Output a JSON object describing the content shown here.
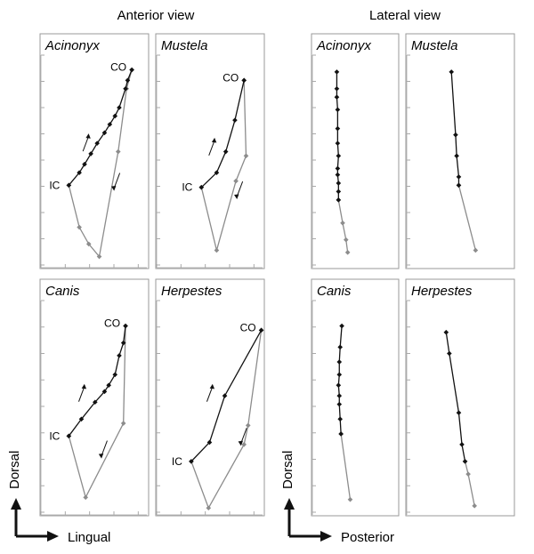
{
  "headings": {
    "anterior": "Anterior view",
    "lateral": "Lateral view"
  },
  "axes": {
    "anterior": {
      "vertical": "Dorsal",
      "horizontal": "Lingual"
    },
    "lateral": {
      "vertical": "Dorsal",
      "horizontal": "Posterior"
    }
  },
  "colors": {
    "closing": "#111111",
    "opening": "#8c8c8c",
    "frame": "#9a9a9a"
  },
  "chart_data": [
    {
      "type": "scatter",
      "title": "Acinonyx",
      "view": "Anterior view",
      "start_label": "IC",
      "end_label": "CO",
      "arrows": [
        "up",
        "down"
      ],
      "xlim": [
        0,
        100
      ],
      "ylim": [
        0,
        100
      ],
      "series": [
        {
          "role": "closing",
          "x": [
            24,
            34,
            39,
            45,
            51,
            58,
            63,
            68,
            72,
            78,
            80,
            84
          ],
          "y": [
            38,
            44,
            48,
            53,
            58,
            63,
            67,
            71,
            75,
            84,
            88,
            93
          ]
        },
        {
          "role": "opening",
          "x": [
            24,
            34,
            43,
            53,
            71,
            79,
            84
          ],
          "y": [
            38,
            18,
            10,
            4,
            54,
            84,
            93
          ]
        }
      ]
    },
    {
      "type": "scatter",
      "title": "Mustela",
      "view": "Anterior view",
      "start_label": "IC",
      "end_label": "CO",
      "arrows": [
        "up",
        "down"
      ],
      "xlim": [
        0,
        100
      ],
      "ylim": [
        0,
        100
      ],
      "series": [
        {
          "role": "closing",
          "x": [
            38,
            53,
            62,
            71,
            80
          ],
          "y": [
            37,
            44,
            54,
            69,
            88
          ]
        },
        {
          "role": "opening",
          "x": [
            38,
            53,
            72,
            82,
            80
          ],
          "y": [
            37,
            7,
            40,
            52,
            88
          ]
        }
      ]
    },
    {
      "type": "scatter",
      "title": "Acinonyx",
      "view": "Lateral view",
      "xlim": [
        0,
        100
      ],
      "ylim": [
        0,
        100
      ],
      "series": [
        {
          "role": "closing",
          "x": [
            26,
            26,
            26,
            27,
            27,
            27,
            28,
            27,
            27,
            28,
            28,
            28
          ],
          "y": [
            92,
            84,
            80,
            74,
            65,
            58,
            52,
            46,
            43,
            39,
            35,
            31
          ]
        },
        {
          "role": "opening",
          "x": [
            28,
            33,
            37,
            39
          ],
          "y": [
            31,
            20,
            12,
            6
          ]
        }
      ]
    },
    {
      "type": "scatter",
      "title": "Mustela",
      "view": "Lateral view",
      "xlim": [
        0,
        100
      ],
      "ylim": [
        0,
        100
      ],
      "series": [
        {
          "role": "closing",
          "x": [
            40,
            44,
            45,
            47,
            47
          ],
          "y": [
            92,
            62,
            52,
            42,
            38
          ]
        },
        {
          "role": "opening",
          "x": [
            47,
            63
          ],
          "y": [
            38,
            7
          ]
        }
      ]
    },
    {
      "type": "scatter",
      "title": "Canis",
      "view": "Anterior view",
      "start_label": "IC",
      "end_label": "CO",
      "arrows": [
        "up",
        "down"
      ],
      "xlim": [
        0,
        100
      ],
      "ylim": [
        0,
        100
      ],
      "series": [
        {
          "role": "closing",
          "x": [
            24,
            36,
            49,
            58,
            62,
            68,
            72,
            76,
            78
          ],
          "y": [
            36,
            44,
            52,
            57,
            60,
            65,
            74,
            80,
            88
          ]
        },
        {
          "role": "opening",
          "x": [
            24,
            40,
            76,
            78
          ],
          "y": [
            36,
            7,
            42,
            88
          ]
        }
      ]
    },
    {
      "type": "scatter",
      "title": "Herpestes",
      "view": "Anterior view",
      "start_label": "IC",
      "end_label": "CO",
      "arrows": [
        "up",
        "down"
      ],
      "xlim": [
        0,
        100
      ],
      "ylim": [
        0,
        100
      ],
      "series": [
        {
          "role": "closing",
          "x": [
            28,
            46,
            61,
            97
          ],
          "y": [
            24,
            33,
            55,
            86
          ]
        },
        {
          "role": "opening",
          "x": [
            28,
            45,
            80,
            84,
            97
          ],
          "y": [
            24,
            2,
            32,
            41,
            86
          ]
        }
      ]
    },
    {
      "type": "scatter",
      "title": "Canis",
      "view": "Lateral view",
      "xlim": [
        0,
        100
      ],
      "ylim": [
        0,
        100
      ],
      "series": [
        {
          "role": "closing",
          "x": [
            32,
            30,
            29,
            29,
            28,
            29,
            29,
            30,
            31
          ],
          "y": [
            88,
            78,
            71,
            65,
            60,
            55,
            51,
            44,
            37
          ]
        },
        {
          "role": "opening",
          "x": [
            31,
            42
          ],
          "y": [
            37,
            6
          ]
        }
      ]
    },
    {
      "type": "scatter",
      "title": "Herpestes",
      "view": "Lateral view",
      "xlim": [
        0,
        100
      ],
      "ylim": [
        0,
        100
      ],
      "series": [
        {
          "role": "closing",
          "x": [
            35,
            38,
            47,
            50,
            53
          ],
          "y": [
            85,
            75,
            47,
            32,
            24
          ]
        },
        {
          "role": "opening",
          "x": [
            53,
            56,
            62
          ],
          "y": [
            24,
            18,
            3
          ]
        }
      ]
    }
  ]
}
